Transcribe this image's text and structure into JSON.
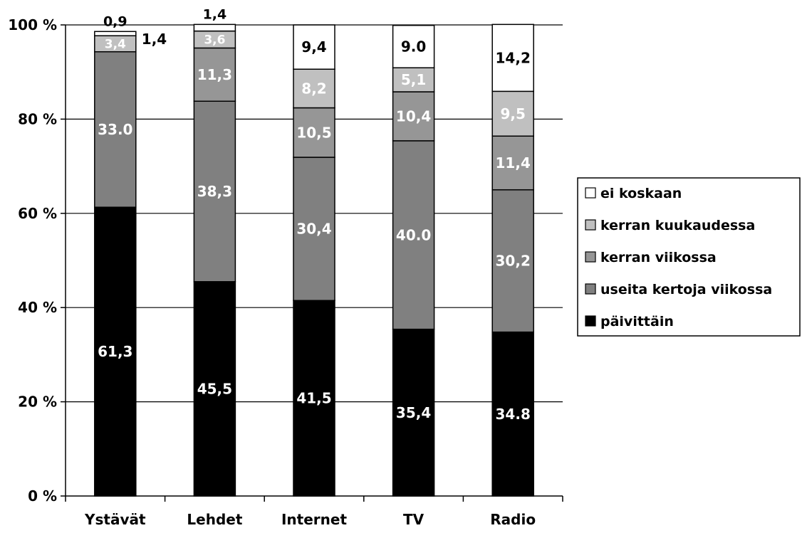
{
  "chart_data": {
    "type": "bar",
    "stacked": true,
    "percent_stacked": true,
    "categories": [
      "Ystävät",
      "Lehdet",
      "Internet",
      "TV",
      "Radio"
    ],
    "series": [
      {
        "name": "päivittäin",
        "values": [
          61.3,
          45.5,
          41.5,
          35.4,
          34.8
        ],
        "labels": [
          "61,3",
          "45,5",
          "41,5",
          "35,4",
          "34.8"
        ],
        "color": "#000000",
        "label_color": "#ffffff"
      },
      {
        "name": "useita kertoja viikossa",
        "values": [
          33.0,
          38.3,
          30.4,
          40.0,
          30.2
        ],
        "labels": [
          "33.0",
          "38,3",
          "30,4",
          "40.0",
          "30,2"
        ],
        "color": "#808080",
        "label_color": "#ffffff"
      },
      {
        "name": "kerran viikossa",
        "values": [
          0,
          11.3,
          10.5,
          10.4,
          11.4
        ],
        "labels": [
          "",
          "11,3",
          "10,5",
          "10,4",
          "11,4"
        ],
        "color": "#969696",
        "label_color": "#ffffff"
      },
      {
        "name": "kerran kuukaudessa",
        "values": [
          3.4,
          3.6,
          8.2,
          5.1,
          9.5
        ],
        "labels": [
          "3,4",
          "3,6",
          "8,2",
          "5,1",
          "9,5"
        ],
        "color": "#c0c0c0",
        "label_color": "#ffffff"
      },
      {
        "name": "ei koskaan",
        "values": [
          0.9,
          1.4,
          9.4,
          9.0,
          14.2
        ],
        "labels": [
          "0,9",
          "1,4",
          "9,4",
          "9.0",
          "14,2"
        ],
        "color": "#ffffff",
        "label_color": "#000000"
      }
    ],
    "extra_labels": [
      {
        "category_index": 0,
        "text": "1,4"
      }
    ],
    "y_ticks": [
      "0 %",
      "20 %",
      "40 %",
      "60 %",
      "80 %",
      "100 %"
    ],
    "ylim": [
      0,
      100
    ],
    "grid": true,
    "legend_position": "right"
  }
}
